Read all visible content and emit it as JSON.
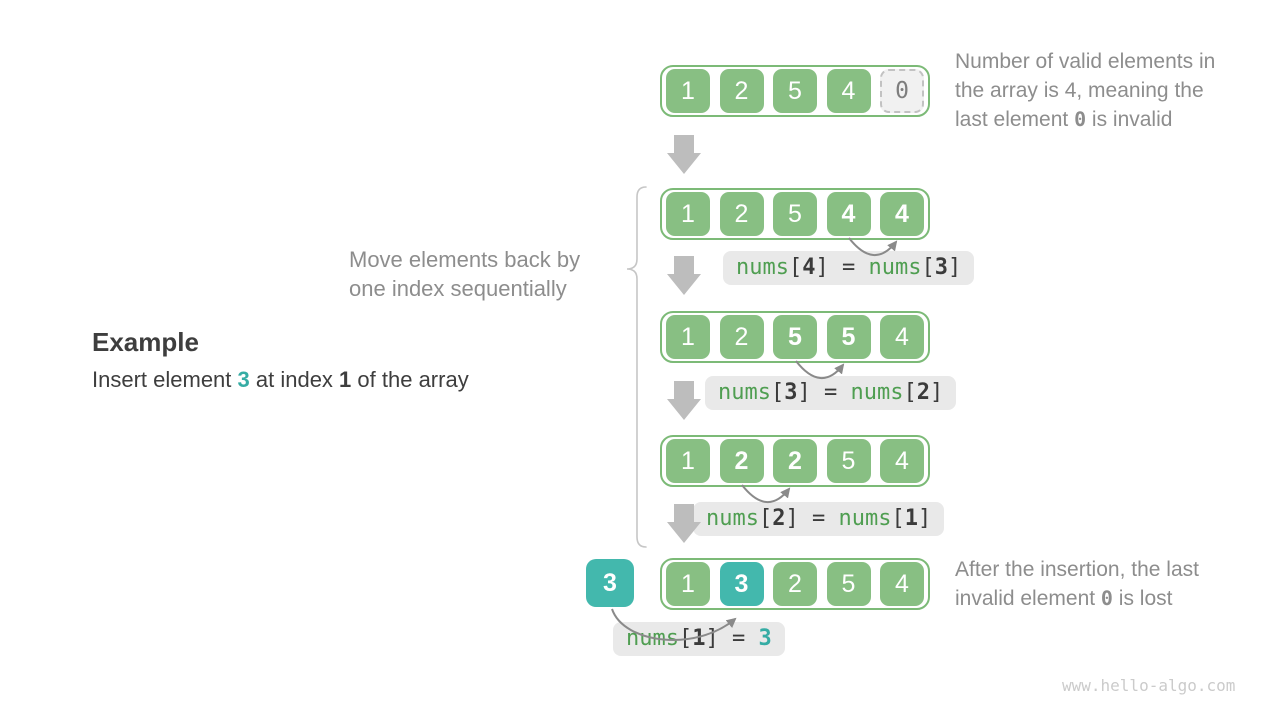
{
  "example": {
    "title": "Example",
    "description": [
      [
        [
          "d",
          "Insert element "
        ],
        [
          "tb",
          "3"
        ],
        [
          "d",
          " at index "
        ],
        [
          "db",
          "1"
        ],
        [
          "d",
          " of the array"
        ]
      ]
    ]
  },
  "move_note": [
    [
      [
        "g",
        "Move elements back by"
      ]
    ],
    [
      [
        "g",
        "one index sequentially"
      ]
    ]
  ],
  "annotations": {
    "top": [
      [
        [
          "g",
          "Number of valid elements in"
        ]
      ],
      [
        [
          "g",
          "the array is 4, meaning the"
        ]
      ],
      [
        [
          "g",
          "last element "
        ],
        [
          "m",
          "0"
        ],
        [
          "g",
          " is invalid"
        ]
      ]
    ],
    "bottom": [
      [
        [
          "g",
          "After the insertion, the last"
        ]
      ],
      [
        [
          "g",
          "invalid element "
        ],
        [
          "m",
          "0"
        ],
        [
          "g",
          " is lost"
        ]
      ]
    ]
  },
  "insert_value": "3",
  "arrays": [
    {
      "cells": [
        {
          "v": "1"
        },
        {
          "v": "2"
        },
        {
          "v": "5"
        },
        {
          "v": "4"
        },
        {
          "v": "0",
          "variant": "invalid"
        }
      ]
    },
    {
      "cells": [
        {
          "v": "1"
        },
        {
          "v": "2"
        },
        {
          "v": "5"
        },
        {
          "v": "4",
          "bold": true
        },
        {
          "v": "4",
          "bold": true
        }
      ]
    },
    {
      "cells": [
        {
          "v": "1"
        },
        {
          "v": "2"
        },
        {
          "v": "5",
          "bold": true
        },
        {
          "v": "5",
          "bold": true
        },
        {
          "v": "4"
        }
      ]
    },
    {
      "cells": [
        {
          "v": "1"
        },
        {
          "v": "2",
          "bold": true
        },
        {
          "v": "2",
          "bold": true
        },
        {
          "v": "5"
        },
        {
          "v": "4"
        }
      ]
    },
    {
      "cells": [
        {
          "v": "1"
        },
        {
          "v": "3",
          "variant": "insert",
          "bold": true
        },
        {
          "v": "2"
        },
        {
          "v": "5"
        },
        {
          "v": "4"
        }
      ]
    }
  ],
  "labels": [
    {
      "lines": [
        [
          [
            "cg",
            "nums"
          ],
          [
            "cd",
            "["
          ],
          [
            "cb",
            "4"
          ],
          [
            "cd",
            "]"
          ],
          [
            "cd",
            " = "
          ],
          [
            "cg",
            "nums"
          ],
          [
            "cd",
            "["
          ],
          [
            "cb",
            "3"
          ],
          [
            "cd",
            "]"
          ]
        ]
      ]
    },
    {
      "lines": [
        [
          [
            "cg",
            "nums"
          ],
          [
            "cd",
            "["
          ],
          [
            "cb",
            "3"
          ],
          [
            "cd",
            "]"
          ],
          [
            "cd",
            " = "
          ],
          [
            "cg",
            "nums"
          ],
          [
            "cd",
            "["
          ],
          [
            "cb",
            "2"
          ],
          [
            "cd",
            "]"
          ]
        ]
      ]
    },
    {
      "lines": [
        [
          [
            "cg",
            "nums"
          ],
          [
            "cd",
            "["
          ],
          [
            "cb",
            "2"
          ],
          [
            "cd",
            "]"
          ],
          [
            "cd",
            " = "
          ],
          [
            "cg",
            "nums"
          ],
          [
            "cd",
            "["
          ],
          [
            "cb",
            "1"
          ],
          [
            "cd",
            "]"
          ]
        ]
      ]
    },
    {
      "lines": [
        [
          [
            "cg",
            "nums"
          ],
          [
            "cd",
            "["
          ],
          [
            "cb",
            "1"
          ],
          [
            "cd",
            "]"
          ],
          [
            "cd",
            " = "
          ],
          [
            "ct",
            "3"
          ]
        ]
      ]
    }
  ],
  "watermark": "www.hello-algo.com",
  "colors": {
    "green": "#88bf83",
    "green_border": "#7cba77",
    "teal": "#43b8ad",
    "teal_text": "#35aca4",
    "gray_text": "#8d8d8d",
    "dark_text": "#3e3e3e",
    "code_green": "#4f9e51",
    "code_dark": "#3b3b3b",
    "label_bg": "#e9e9e9",
    "arrow_gray": "#bdbdbd",
    "curve_gray": "#8a8a8a",
    "invalid_bg": "#f1f1f1",
    "invalid_border": "#c2c2c2",
    "invalid_text": "#7e7e7e",
    "watermark": "#cbcbcb",
    "brace": "#c6c6c6"
  }
}
